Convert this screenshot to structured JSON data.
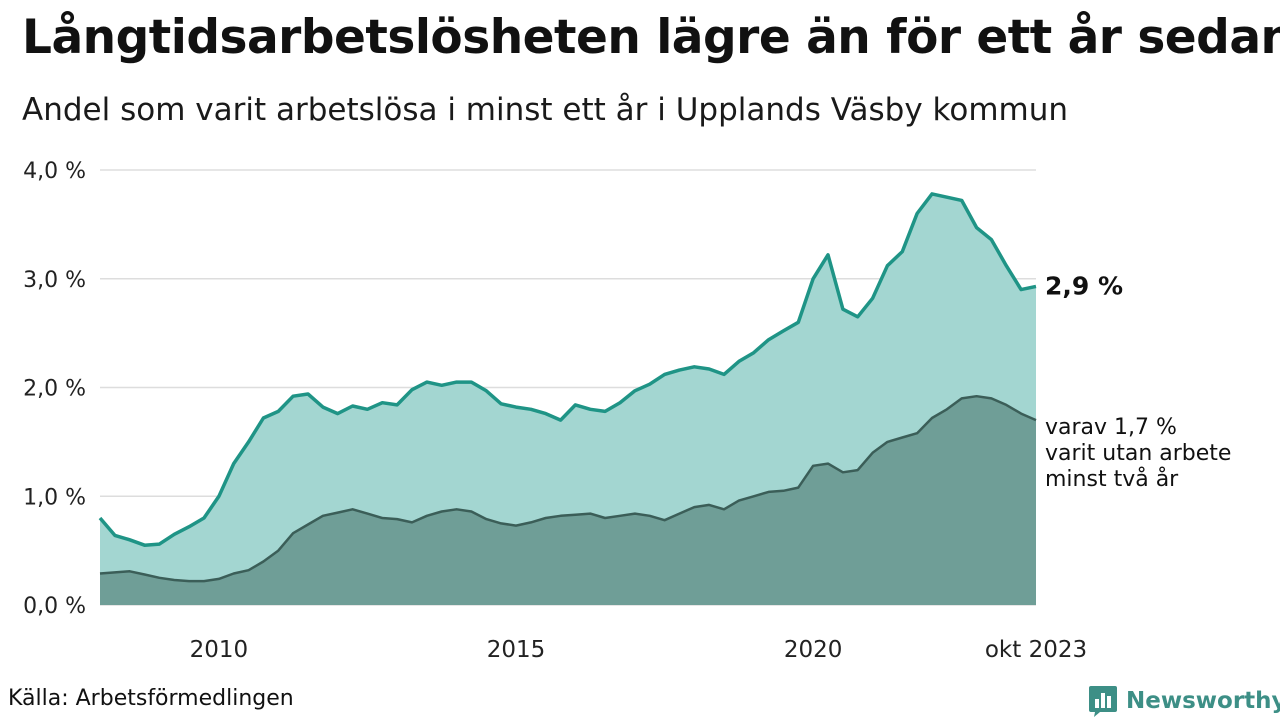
{
  "title": "Långtidsarbetslösheten lägre än för ett år sedan",
  "subtitle": "Andel som varit arbetslösa i minst ett år i Upplands Väsby kommun",
  "source": "Källa: Arbetsförmedlingen",
  "brand": "Newsworthy",
  "colors": {
    "area_total": "#a3d6d1",
    "line_total": "#1f9486",
    "area_long": "#6f9e97",
    "line_long": "#3b5e58",
    "grid": "#dddddd",
    "brand": "#3d8f86"
  },
  "chart_data": {
    "type": "area",
    "x_range": [
      "2008-01",
      "2023-10"
    ],
    "ylim": [
      0,
      4.0
    ],
    "y_ticks": [
      0,
      1.0,
      2.0,
      3.0,
      4.0
    ],
    "y_tick_labels": [
      "0,0 %",
      "1,0 %",
      "2,0 %",
      "3,0 %",
      "4,0 %"
    ],
    "x_ticks": [
      "2010-01",
      "2015-01",
      "2020-01",
      "2023-10"
    ],
    "x_tick_labels": [
      "2010",
      "2015",
      "2020",
      "okt 2023"
    ],
    "grid": "horizontal",
    "series": [
      {
        "key": "total",
        "x": [
          "2008-01",
          "2008-04",
          "2008-07",
          "2008-10",
          "2009-01",
          "2009-04",
          "2009-07",
          "2009-10",
          "2010-01",
          "2010-04",
          "2010-07",
          "2010-10",
          "2011-01",
          "2011-04",
          "2011-07",
          "2011-10",
          "2012-01",
          "2012-04",
          "2012-07",
          "2012-10",
          "2013-01",
          "2013-04",
          "2013-07",
          "2013-10",
          "2014-01",
          "2014-04",
          "2014-07",
          "2014-10",
          "2015-01",
          "2015-04",
          "2015-07",
          "2015-10",
          "2016-01",
          "2016-04",
          "2016-07",
          "2016-10",
          "2017-01",
          "2017-04",
          "2017-07",
          "2017-10",
          "2018-01",
          "2018-04",
          "2018-07",
          "2018-10",
          "2019-01",
          "2019-04",
          "2019-07",
          "2019-10",
          "2020-01",
          "2020-04",
          "2020-07",
          "2020-10",
          "2021-01",
          "2021-04",
          "2021-07",
          "2021-10",
          "2022-01",
          "2022-04",
          "2022-07",
          "2022-10",
          "2023-01",
          "2023-04",
          "2023-07",
          "2023-10"
        ],
        "values": [
          0.8,
          0.64,
          0.6,
          0.55,
          0.56,
          0.65,
          0.72,
          0.8,
          1.0,
          1.3,
          1.5,
          1.72,
          1.78,
          1.92,
          1.94,
          1.82,
          1.76,
          1.83,
          1.8,
          1.86,
          1.84,
          1.98,
          2.05,
          2.02,
          2.05,
          2.05,
          1.97,
          1.85,
          1.82,
          1.8,
          1.76,
          1.7,
          1.84,
          1.8,
          1.78,
          1.86,
          1.97,
          2.03,
          2.12,
          2.16,
          2.19,
          2.17,
          2.12,
          2.24,
          2.32,
          2.44,
          2.52,
          2.6,
          3.0,
          3.22,
          2.72,
          2.65,
          2.82,
          3.12,
          3.25,
          3.6,
          3.78,
          3.75,
          3.72,
          3.47,
          3.36,
          3.12,
          2.9,
          2.93
        ]
      },
      {
        "key": "long",
        "x": [
          "2008-01",
          "2008-04",
          "2008-07",
          "2008-10",
          "2009-01",
          "2009-04",
          "2009-07",
          "2009-10",
          "2010-01",
          "2010-04",
          "2010-07",
          "2010-10",
          "2011-01",
          "2011-04",
          "2011-07",
          "2011-10",
          "2012-01",
          "2012-04",
          "2012-07",
          "2012-10",
          "2013-01",
          "2013-04",
          "2013-07",
          "2013-10",
          "2014-01",
          "2014-04",
          "2014-07",
          "2014-10",
          "2015-01",
          "2015-04",
          "2015-07",
          "2015-10",
          "2016-01",
          "2016-04",
          "2016-07",
          "2016-10",
          "2017-01",
          "2017-04",
          "2017-07",
          "2017-10",
          "2018-01",
          "2018-04",
          "2018-07",
          "2018-10",
          "2019-01",
          "2019-04",
          "2019-07",
          "2019-10",
          "2020-01",
          "2020-04",
          "2020-07",
          "2020-10",
          "2021-01",
          "2021-04",
          "2021-07",
          "2021-10",
          "2022-01",
          "2022-04",
          "2022-07",
          "2022-10",
          "2023-01",
          "2023-04",
          "2023-07",
          "2023-10"
        ],
        "values": [
          0.29,
          0.3,
          0.31,
          0.28,
          0.25,
          0.23,
          0.22,
          0.22,
          0.24,
          0.29,
          0.32,
          0.4,
          0.5,
          0.66,
          0.74,
          0.82,
          0.85,
          0.88,
          0.84,
          0.8,
          0.79,
          0.76,
          0.82,
          0.86,
          0.88,
          0.86,
          0.79,
          0.75,
          0.73,
          0.76,
          0.8,
          0.82,
          0.83,
          0.84,
          0.8,
          0.82,
          0.84,
          0.82,
          0.78,
          0.84,
          0.9,
          0.92,
          0.88,
          0.96,
          1.0,
          1.04,
          1.05,
          1.08,
          1.28,
          1.3,
          1.22,
          1.24,
          1.4,
          1.5,
          1.54,
          1.58,
          1.72,
          1.8,
          1.9,
          1.92,
          1.9,
          1.84,
          1.76,
          1.7
        ]
      }
    ],
    "annotations": [
      {
        "series": "total",
        "text": "2,9 %"
      },
      {
        "series": "long",
        "lines": [
          "varav 1,7 %",
          "varit utan arbete",
          "minst två år"
        ]
      }
    ]
  }
}
